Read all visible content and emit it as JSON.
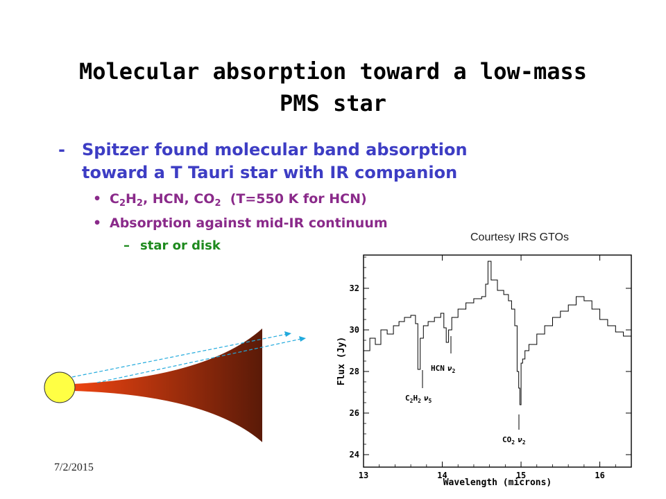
{
  "slide": {
    "title_line1": "Molecular absorption toward a low-mass",
    "title_line2": "PMS star",
    "bullet1_marker": "-",
    "bullet1_line1": "Spitzer found molecular band absorption",
    "bullet1_line2": "toward a T Tauri star with IR companion",
    "bullet2_marker": "•",
    "bullet2_pre": "C",
    "bullet2_sub1": "2",
    "bullet2_mid1": "H",
    "bullet2_sub2": "2",
    "bullet2_mid2": ", HCN, CO",
    "bullet2_sub3": "2",
    "bullet2_post": "  (T=550 K for HCN)",
    "bullet3_marker": "•",
    "bullet3_text": "Absorption against mid-IR continuum",
    "sub_marker": "–",
    "sub_text": "star or disk",
    "courtesy": "Courtesy IRS GTOs",
    "date": "7/2/2015"
  },
  "colors": {
    "title": "#000000",
    "bullet1": "#3d3dc4",
    "bullet2": "#8a2a8a",
    "sub": "#1e8a1e",
    "star_fill": "#ffff44",
    "disk_inner": "#ee4411",
    "disk_outer": "#5a1a08",
    "ray": "#22aadd"
  },
  "chart_data": {
    "type": "line",
    "xlabel": "Wavelength (microns)",
    "ylabel": "Flux (Jy)",
    "xlim": [
      13,
      16.4
    ],
    "ylim": [
      23.4,
      33.6
    ],
    "xticks": [
      13,
      14,
      15,
      16
    ],
    "yticks": [
      24,
      26,
      28,
      30,
      32
    ],
    "series": [
      {
        "x": [
          13.0,
          13.08,
          13.15,
          13.22,
          13.3,
          13.38,
          13.45,
          13.52,
          13.6,
          13.66,
          13.69,
          13.72,
          13.76,
          13.82,
          13.9,
          13.98,
          14.02,
          14.05,
          14.08,
          14.12,
          14.2,
          14.3,
          14.4,
          14.5,
          14.55,
          14.58,
          14.62,
          14.7,
          14.78,
          14.84,
          14.88,
          14.92,
          14.95,
          14.97,
          14.985,
          15.0,
          15.02,
          15.05,
          15.1,
          15.2,
          15.3,
          15.4,
          15.5,
          15.6,
          15.7,
          15.8,
          15.9,
          16.0,
          16.1,
          16.2,
          16.3,
          16.4
        ],
        "y": [
          29.0,
          29.6,
          29.3,
          30.0,
          29.8,
          30.2,
          30.4,
          30.6,
          30.7,
          30.3,
          28.1,
          29.6,
          30.2,
          30.4,
          30.6,
          30.8,
          30.1,
          29.4,
          30.0,
          30.6,
          31.0,
          31.3,
          31.5,
          31.6,
          32.2,
          33.3,
          32.4,
          31.9,
          31.7,
          31.4,
          31.0,
          30.2,
          28.0,
          27.2,
          26.4,
          28.4,
          28.6,
          29.0,
          29.3,
          29.8,
          30.2,
          30.6,
          30.9,
          31.2,
          31.6,
          31.4,
          31.0,
          30.5,
          30.2,
          29.9,
          29.7,
          29.8
        ]
      }
    ],
    "annotations": {
      "hcn_main": "HCN",
      "hcn_sub": "ν",
      "hcn_subidx": "2",
      "c2h2_pre": "C",
      "c2h2_s1": "2",
      "c2h2_mid": "H",
      "c2h2_s2": "2",
      "c2h2_nu": "ν",
      "c2h2_nuidx": "5",
      "co2_pre": "CO",
      "co2_s": "2",
      "co2_nu": "ν",
      "co2_nuidx": "2"
    }
  }
}
